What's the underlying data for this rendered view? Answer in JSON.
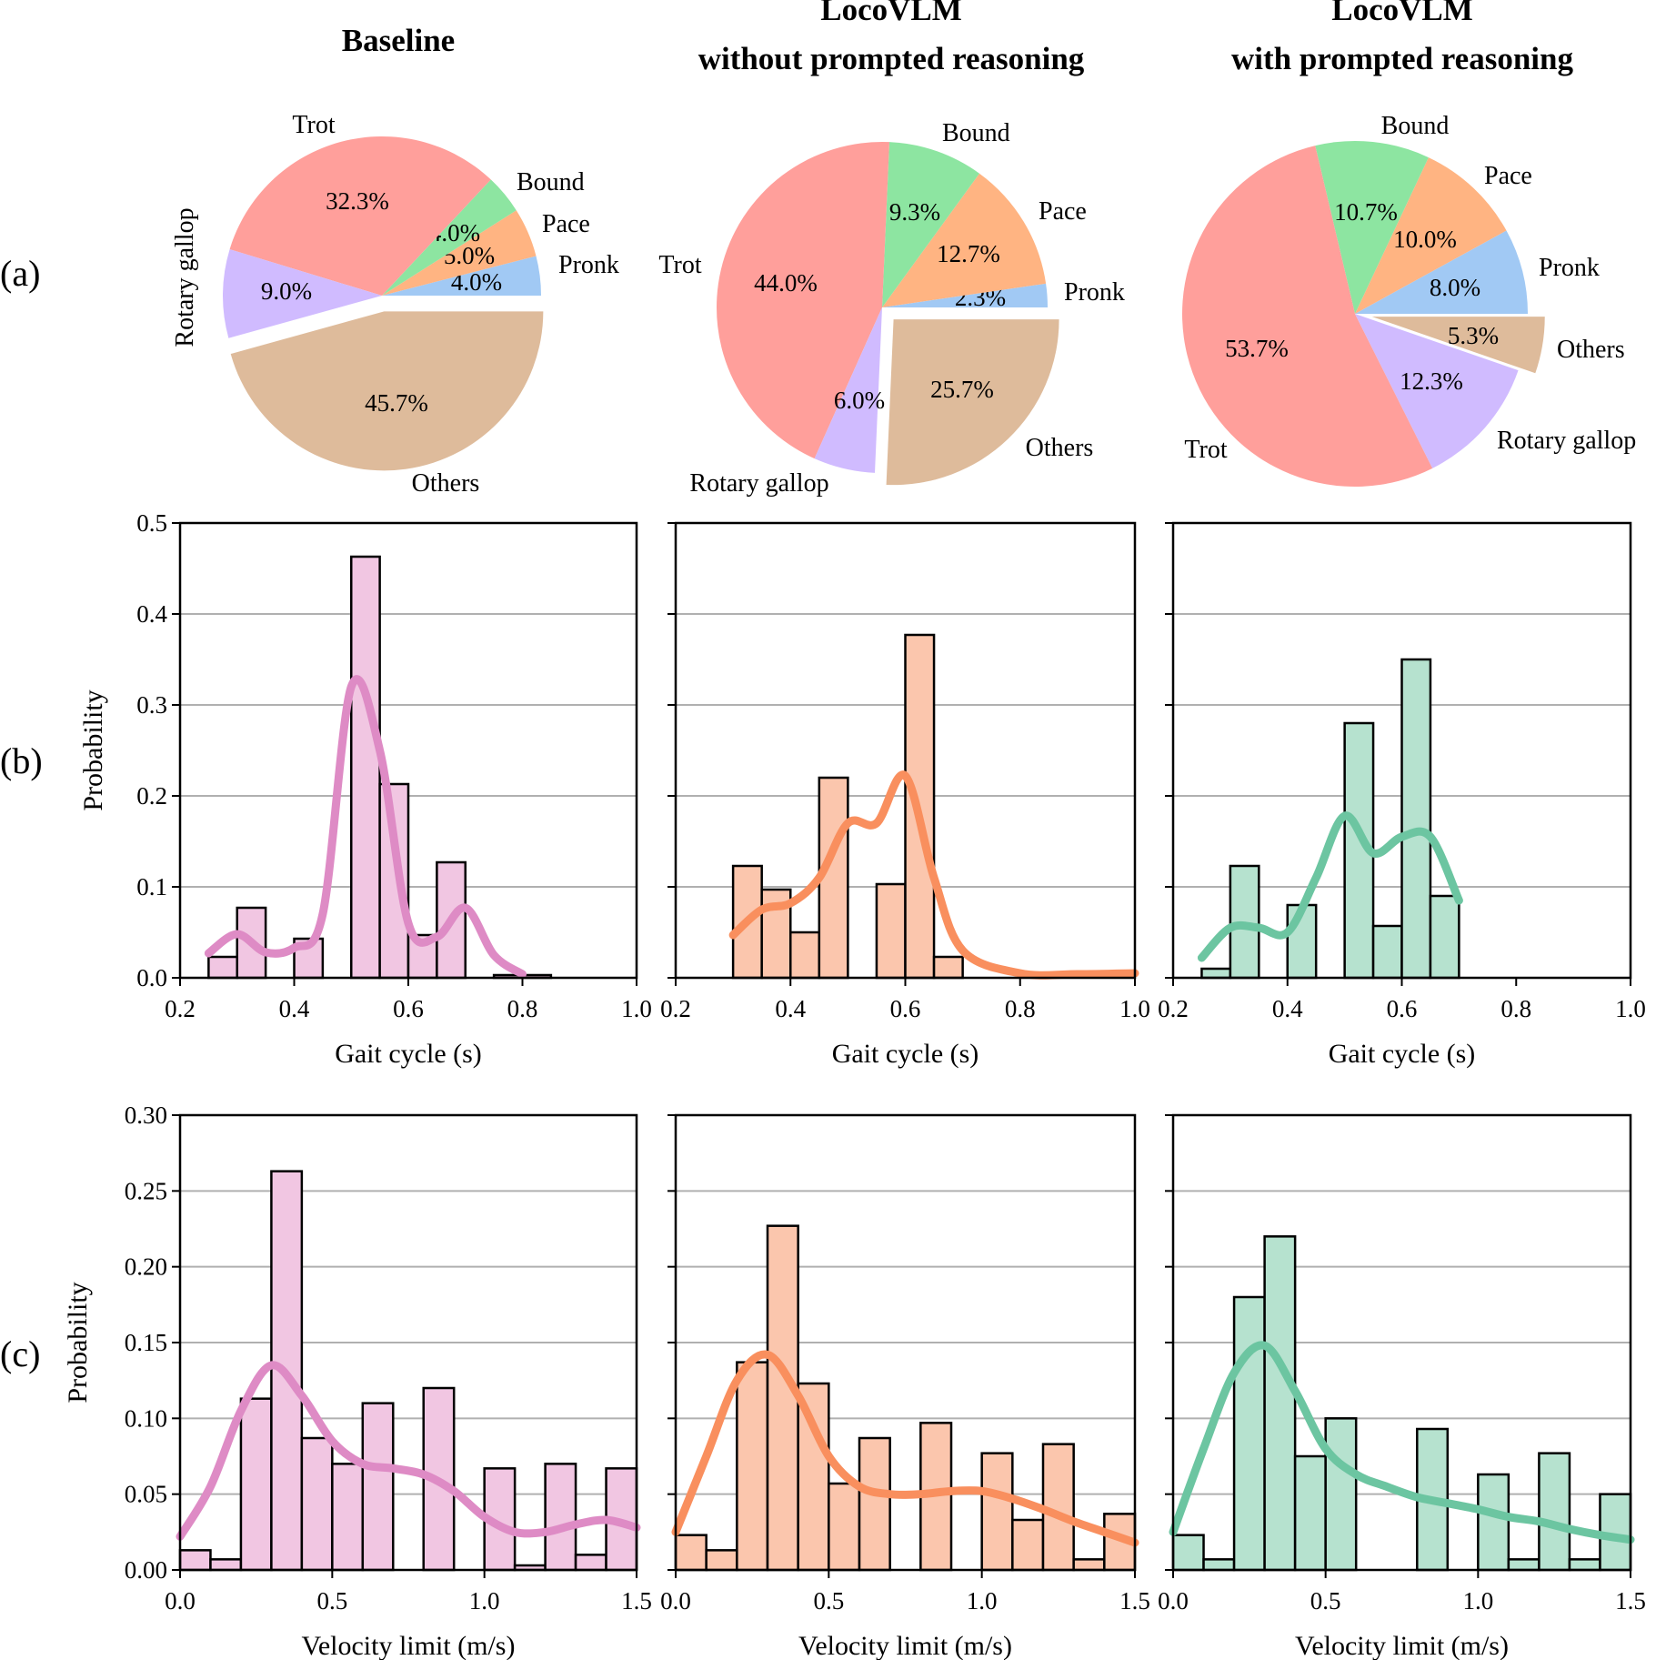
{
  "figure": {
    "row_labels": [
      "(a)",
      "(b)",
      "(c)"
    ],
    "column_titles": [
      {
        "lines": [
          "Baseline"
        ]
      },
      {
        "lines": [
          "LocoVLM",
          "without prompted reasoning"
        ]
      },
      {
        "lines": [
          "LocoVLM",
          "with prompted reasoning"
        ]
      }
    ]
  },
  "colors": {
    "Trot": "#ff9f9b",
    "Bound": "#8de5a1",
    "Pace": "#ffb482",
    "Pronk": "#a1c9f4",
    "Others": "#debb9b",
    "Rotary gallop": "#d0bbff",
    "baseline": "#de8bc5",
    "baseline_fill": "#f1c6e2",
    "without": "#f98f5e",
    "without_fill": "#fbc6ad",
    "with": "#6cc5a1",
    "with_fill": "#b6e2cf"
  },
  "chart_data": [
    {
      "type": "pie",
      "panel": "(a)",
      "title": "Baseline",
      "labels": [
        "Pronk",
        "Pace",
        "Bound",
        "Trot",
        "Rotary gallop",
        "Others"
      ],
      "values": [
        4.0,
        5.0,
        4.0,
        32.3,
        9.0,
        45.7
      ],
      "percent_labels": [
        "4.0%",
        "5.0%",
        "4.0%",
        "32.3%",
        "9.0%",
        "45.7%"
      ],
      "exploded": [
        "Others"
      ]
    },
    {
      "type": "pie",
      "panel": "(a)",
      "title": "LocoVLM without prompted reasoning",
      "labels": [
        "Pronk",
        "Pace",
        "Bound",
        "Trot",
        "Rotary gallop",
        "Others"
      ],
      "values": [
        2.3,
        12.7,
        9.3,
        44.0,
        6.0,
        25.7
      ],
      "percent_labels": [
        "2.3%",
        "12.7%",
        "9.3%",
        "44.0%",
        "6.0%",
        "25.7%"
      ],
      "exploded": [
        "Others"
      ]
    },
    {
      "type": "pie",
      "panel": "(a)",
      "title": "LocoVLM with prompted reasoning",
      "labels": [
        "Pronk",
        "Pace",
        "Bound",
        "Trot",
        "Rotary gallop",
        "Others"
      ],
      "values": [
        8.0,
        10.0,
        10.7,
        53.7,
        12.3,
        5.3
      ],
      "percent_labels": [
        "8.0%",
        "10.0%",
        "10.7%",
        "53.7%",
        "12.3%",
        "5.3%"
      ],
      "exploded": [
        "Others"
      ]
    },
    {
      "type": "bar",
      "subtype": "histogram_kde",
      "panel": "(b)",
      "series": "Baseline",
      "xlabel": "Gait cycle (s)",
      "ylabel": "Probability",
      "xlim": [
        0.2,
        1.0
      ],
      "ylim": [
        0,
        0.5
      ],
      "xticks": [
        "0.2",
        "0.4",
        "0.6",
        "0.8",
        "1.0"
      ],
      "yticks": [
        "0.0",
        "0.1",
        "0.2",
        "0.3",
        "0.4",
        "0.5"
      ],
      "bin_width": 0.05,
      "bins": [
        [
          0.25,
          0.023
        ],
        [
          0.3,
          0.077
        ],
        [
          0.4,
          0.043
        ],
        [
          0.5,
          0.463
        ],
        [
          0.55,
          0.213
        ],
        [
          0.6,
          0.047
        ],
        [
          0.65,
          0.127
        ],
        [
          0.75,
          0.003
        ],
        [
          0.8,
          0.003
        ]
      ],
      "kde": [
        [
          0.25,
          0.027
        ],
        [
          0.3,
          0.048
        ],
        [
          0.35,
          0.028
        ],
        [
          0.4,
          0.033
        ],
        [
          0.45,
          0.07
        ],
        [
          0.5,
          0.32
        ],
        [
          0.55,
          0.25
        ],
        [
          0.6,
          0.06
        ],
        [
          0.65,
          0.045
        ],
        [
          0.7,
          0.077
        ],
        [
          0.75,
          0.025
        ],
        [
          0.8,
          0.004
        ]
      ]
    },
    {
      "type": "bar",
      "subtype": "histogram_kde",
      "panel": "(b)",
      "series": "LocoVLM without prompted reasoning",
      "xlabel": "Gait cycle (s)",
      "xlim": [
        0.2,
        1.0
      ],
      "ylim": [
        0,
        0.5
      ],
      "xticks": [
        "0.2",
        "0.4",
        "0.6",
        "0.8",
        "1.0"
      ],
      "bin_width": 0.05,
      "bins": [
        [
          0.3,
          0.123
        ],
        [
          0.35,
          0.097
        ],
        [
          0.4,
          0.05
        ],
        [
          0.45,
          0.22
        ],
        [
          0.55,
          0.103
        ],
        [
          0.6,
          0.377
        ],
        [
          0.65,
          0.023
        ]
      ],
      "kde": [
        [
          0.3,
          0.047
        ],
        [
          0.35,
          0.075
        ],
        [
          0.4,
          0.082
        ],
        [
          0.45,
          0.11
        ],
        [
          0.5,
          0.17
        ],
        [
          0.55,
          0.17
        ],
        [
          0.6,
          0.222
        ],
        [
          0.65,
          0.11
        ],
        [
          0.7,
          0.03
        ],
        [
          0.8,
          0.005
        ],
        [
          0.9,
          0.004
        ],
        [
          1.0,
          0.005
        ]
      ]
    },
    {
      "type": "bar",
      "subtype": "histogram_kde",
      "panel": "(b)",
      "series": "LocoVLM with prompted reasoning",
      "xlabel": "Gait cycle (s)",
      "xlim": [
        0.2,
        1.0
      ],
      "ylim": [
        0,
        0.5
      ],
      "xticks": [
        "0.2",
        "0.4",
        "0.6",
        "0.8",
        "1.0"
      ],
      "bin_width": 0.05,
      "bins": [
        [
          0.25,
          0.01
        ],
        [
          0.3,
          0.123
        ],
        [
          0.4,
          0.08
        ],
        [
          0.5,
          0.28
        ],
        [
          0.55,
          0.057
        ],
        [
          0.6,
          0.35
        ],
        [
          0.65,
          0.09
        ]
      ],
      "kde": [
        [
          0.25,
          0.022
        ],
        [
          0.3,
          0.055
        ],
        [
          0.35,
          0.055
        ],
        [
          0.4,
          0.05
        ],
        [
          0.45,
          0.11
        ],
        [
          0.5,
          0.178
        ],
        [
          0.55,
          0.137
        ],
        [
          0.6,
          0.155
        ],
        [
          0.65,
          0.155
        ],
        [
          0.7,
          0.085
        ]
      ]
    },
    {
      "type": "bar",
      "subtype": "histogram_kde",
      "panel": "(c)",
      "series": "Baseline",
      "xlabel": "Velocity limit (m/s)",
      "ylabel": "Probability",
      "xlim": [
        0.0,
        1.5
      ],
      "ylim": [
        0,
        0.3
      ],
      "xticks": [
        "0.0",
        "0.5",
        "1.0",
        "1.5"
      ],
      "yticks": [
        "0.00",
        "0.05",
        "0.10",
        "0.15",
        "0.20",
        "0.25",
        "0.30"
      ],
      "bin_width": 0.1,
      "bins": [
        [
          0.0,
          0.013
        ],
        [
          0.1,
          0.007
        ],
        [
          0.2,
          0.113
        ],
        [
          0.3,
          0.263
        ],
        [
          0.4,
          0.087
        ],
        [
          0.5,
          0.07
        ],
        [
          0.6,
          0.11
        ],
        [
          0.7,
          0.0
        ],
        [
          0.8,
          0.12
        ],
        [
          0.9,
          0.0
        ],
        [
          1.0,
          0.067
        ],
        [
          1.1,
          0.003
        ],
        [
          1.2,
          0.07
        ],
        [
          1.3,
          0.01
        ],
        [
          1.4,
          0.067
        ]
      ],
      "kde": [
        [
          0.0,
          0.022
        ],
        [
          0.1,
          0.055
        ],
        [
          0.2,
          0.105
        ],
        [
          0.3,
          0.135
        ],
        [
          0.4,
          0.115
        ],
        [
          0.5,
          0.085
        ],
        [
          0.6,
          0.07
        ],
        [
          0.7,
          0.067
        ],
        [
          0.8,
          0.063
        ],
        [
          0.9,
          0.052
        ],
        [
          1.0,
          0.035
        ],
        [
          1.1,
          0.025
        ],
        [
          1.2,
          0.025
        ],
        [
          1.3,
          0.03
        ],
        [
          1.4,
          0.033
        ],
        [
          1.5,
          0.028
        ]
      ]
    },
    {
      "type": "bar",
      "subtype": "histogram_kde",
      "panel": "(c)",
      "series": "LocoVLM without prompted reasoning",
      "xlabel": "Velocity limit (m/s)",
      "xlim": [
        0.0,
        1.5
      ],
      "ylim": [
        0,
        0.3
      ],
      "xticks": [
        "0.0",
        "0.5",
        "1.0",
        "1.5"
      ],
      "bin_width": 0.1,
      "bins": [
        [
          0.0,
          0.023
        ],
        [
          0.1,
          0.013
        ],
        [
          0.2,
          0.137
        ],
        [
          0.3,
          0.227
        ],
        [
          0.4,
          0.123
        ],
        [
          0.5,
          0.057
        ],
        [
          0.6,
          0.087
        ],
        [
          0.7,
          0.0
        ],
        [
          0.8,
          0.097
        ],
        [
          0.9,
          0.0
        ],
        [
          1.0,
          0.077
        ],
        [
          1.1,
          0.033
        ],
        [
          1.2,
          0.083
        ],
        [
          1.3,
          0.007
        ],
        [
          1.4,
          0.037
        ]
      ],
      "kde": [
        [
          0.0,
          0.025
        ],
        [
          0.1,
          0.075
        ],
        [
          0.2,
          0.125
        ],
        [
          0.3,
          0.142
        ],
        [
          0.4,
          0.115
        ],
        [
          0.5,
          0.075
        ],
        [
          0.6,
          0.055
        ],
        [
          0.7,
          0.05
        ],
        [
          0.8,
          0.05
        ],
        [
          0.9,
          0.052
        ],
        [
          1.0,
          0.052
        ],
        [
          1.1,
          0.047
        ],
        [
          1.2,
          0.04
        ],
        [
          1.3,
          0.032
        ],
        [
          1.4,
          0.025
        ],
        [
          1.5,
          0.018
        ]
      ]
    },
    {
      "type": "bar",
      "subtype": "histogram_kde",
      "panel": "(c)",
      "series": "LocoVLM with prompted reasoning",
      "xlabel": "Velocity limit (m/s)",
      "xlim": [
        0.0,
        1.5
      ],
      "ylim": [
        0,
        0.3
      ],
      "xticks": [
        "0.0",
        "0.5",
        "1.0",
        "1.5"
      ],
      "bin_width": 0.1,
      "bins": [
        [
          0.0,
          0.023
        ],
        [
          0.1,
          0.007
        ],
        [
          0.2,
          0.18
        ],
        [
          0.3,
          0.22
        ],
        [
          0.4,
          0.075
        ],
        [
          0.5,
          0.1
        ],
        [
          0.6,
          0.0
        ],
        [
          0.7,
          0.0
        ],
        [
          0.8,
          0.093
        ],
        [
          0.9,
          0.0
        ],
        [
          1.0,
          0.063
        ],
        [
          1.1,
          0.007
        ],
        [
          1.2,
          0.077
        ],
        [
          1.3,
          0.007
        ],
        [
          1.4,
          0.05
        ]
      ],
      "kde": [
        [
          0.0,
          0.025
        ],
        [
          0.1,
          0.08
        ],
        [
          0.2,
          0.13
        ],
        [
          0.3,
          0.148
        ],
        [
          0.4,
          0.118
        ],
        [
          0.5,
          0.08
        ],
        [
          0.6,
          0.063
        ],
        [
          0.7,
          0.055
        ],
        [
          0.8,
          0.048
        ],
        [
          0.9,
          0.044
        ],
        [
          1.0,
          0.04
        ],
        [
          1.1,
          0.035
        ],
        [
          1.2,
          0.032
        ],
        [
          1.3,
          0.027
        ],
        [
          1.4,
          0.023
        ],
        [
          1.5,
          0.02
        ]
      ]
    }
  ]
}
